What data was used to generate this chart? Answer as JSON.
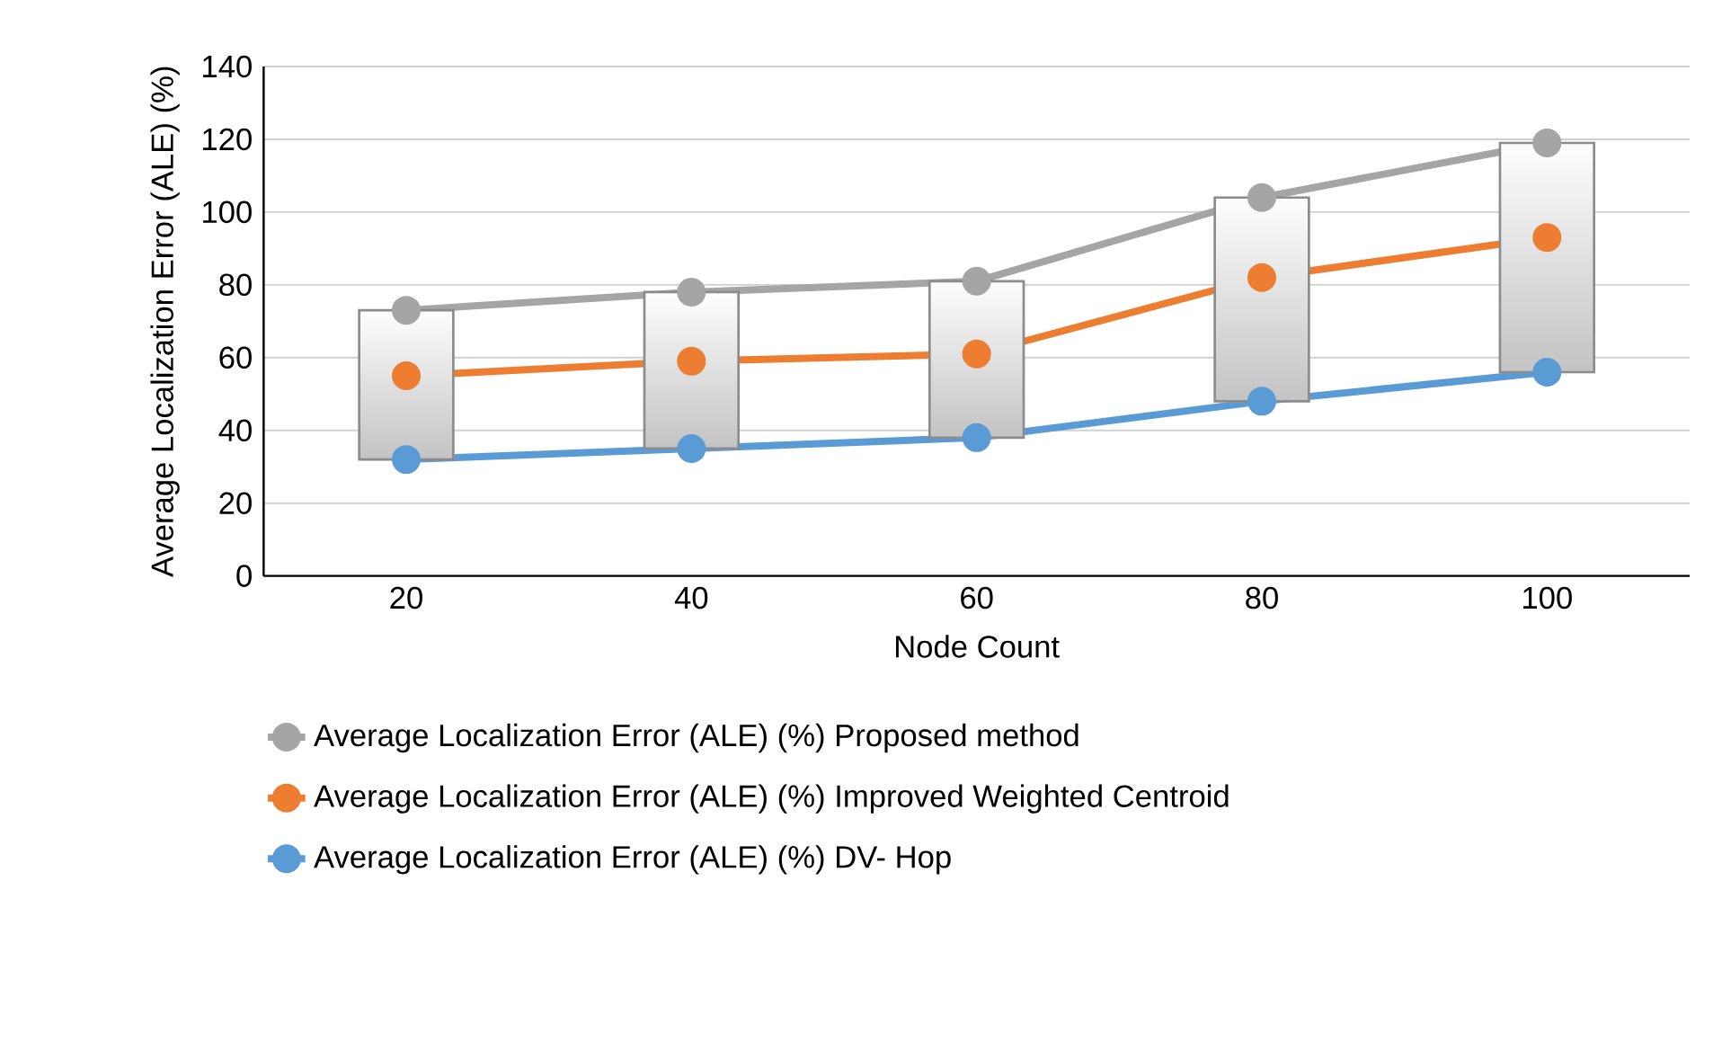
{
  "chart_data": {
    "type": "line",
    "xlabel": "Node Count",
    "ylabel": "Average Localization Error (ALE) (%)",
    "categories": [
      "20",
      "40",
      "60",
      "80",
      "100"
    ],
    "series": [
      {
        "name": "Average Localization Error (ALE) (%) Proposed method",
        "color": "#a5a5a5",
        "values": [
          73,
          78,
          81,
          104,
          119
        ]
      },
      {
        "name": "Average Localization Error (ALE) (%) Improved Weighted Centroid",
        "color": "#ed7d31",
        "values": [
          55,
          59,
          61,
          82,
          93
        ]
      },
      {
        "name": "Average Localization Error (ALE) (%) DV- Hop",
        "color": "#5b9bd5",
        "values": [
          32,
          35,
          38,
          48,
          56
        ]
      },
      {
        "type": "bar",
        "color": "#e6e6e6",
        "base": [
          32,
          35,
          38,
          48,
          56
        ],
        "values": [
          41,
          43,
          43,
          56,
          63
        ]
      }
    ],
    "ylim": [
      0,
      140
    ],
    "yticks": [
      0,
      20,
      40,
      60,
      80,
      100,
      120,
      140
    ],
    "grid": "y",
    "legend": "bottom",
    "marker": "circle",
    "line_style": "solid"
  }
}
